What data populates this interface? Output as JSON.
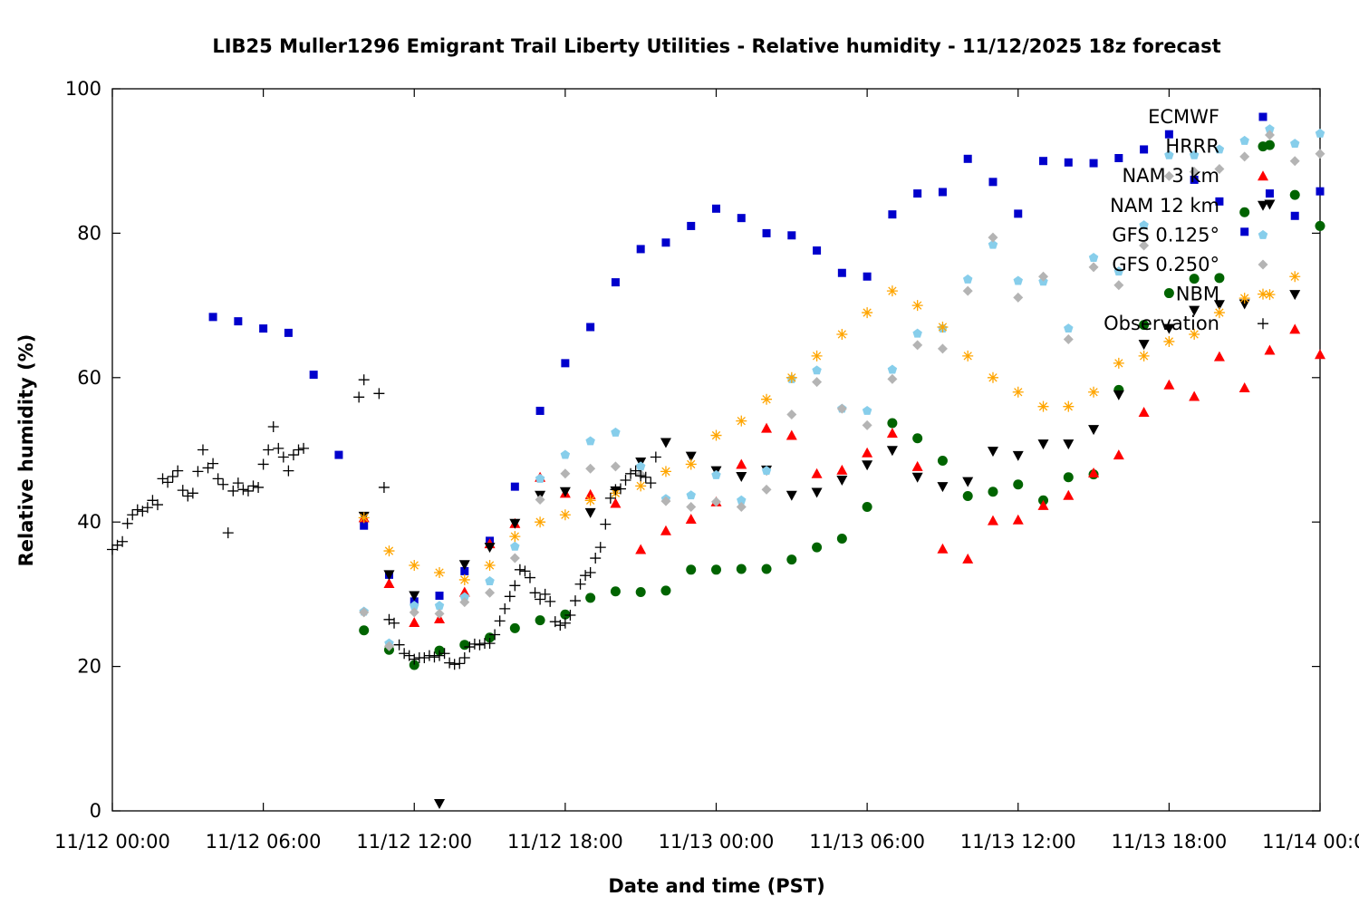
{
  "chart_data": {
    "type": "scatter",
    "title": "LIB25 Muller1296 Emigrant Trail Liberty Utilities - Relative humidity - 11/12/2025 18z forecast",
    "xlabel": "Date and time (PST)",
    "ylabel": "Relative humidity (%)",
    "xlim": [
      0,
      48
    ],
    "ylim": [
      0,
      100
    ],
    "grid": false,
    "legend_position": "top-right",
    "x_unit": "hours since 11/12 00:00 PST",
    "xticks": [
      {
        "x": 0,
        "label": "11/12 00:00"
      },
      {
        "x": 6,
        "label": "11/12 06:00"
      },
      {
        "x": 12,
        "label": "11/12 12:00"
      },
      {
        "x": 18,
        "label": "11/12 18:00"
      },
      {
        "x": 24,
        "label": "11/13 00:00"
      },
      {
        "x": 30,
        "label": "11/13 06:00"
      },
      {
        "x": 36,
        "label": "11/13 12:00"
      },
      {
        "x": 42,
        "label": "11/13 18:00"
      },
      {
        "x": 48,
        "label": "11/14 00:00"
      }
    ],
    "yticks": [
      {
        "y": 0,
        "label": "0"
      },
      {
        "y": 20,
        "label": "20"
      },
      {
        "y": 40,
        "label": "40"
      },
      {
        "y": 60,
        "label": "60"
      },
      {
        "y": 80,
        "label": "80"
      },
      {
        "y": 100,
        "label": "100"
      }
    ],
    "series": [
      {
        "name": "ECMWF",
        "marker": "square",
        "color": "#0000cc",
        "x": [
          4,
          5,
          6,
          7,
          8,
          9,
          10,
          11,
          12,
          13,
          14,
          15,
          16,
          17,
          18,
          19,
          20,
          21,
          22,
          23,
          24,
          25,
          26,
          27,
          28,
          29,
          30,
          31,
          32,
          33,
          34,
          35,
          36,
          37,
          38,
          39,
          40,
          41,
          42,
          43,
          44,
          45,
          46,
          47,
          48
        ],
        "y": [
          68.4,
          67.8,
          66.8,
          66.2,
          60.4,
          49.3,
          39.5,
          32.7,
          29,
          29.8,
          33.2,
          37.4,
          44.9,
          55.4,
          62,
          67,
          73.2,
          77.8,
          78.7,
          81,
          83.4,
          82.1,
          80,
          79.7,
          77.6,
          74.5,
          74,
          82.6,
          85.5,
          85.7,
          90.3,
          87.1,
          82.7,
          90,
          89.8,
          89.7,
          90.4,
          91.6,
          93.7,
          87.4,
          84.4,
          80.2,
          85.5,
          82.4,
          85.8
        ]
      },
      {
        "name": "HRRR",
        "marker": "circle",
        "color": "#006400",
        "x": [
          10,
          11,
          12,
          13,
          14,
          15,
          16,
          17,
          18,
          19,
          20,
          21,
          22,
          23,
          24,
          25,
          26,
          27,
          28,
          29,
          30,
          31,
          32,
          33,
          34,
          35,
          36,
          37,
          38,
          39,
          40,
          41,
          42,
          43,
          44,
          45,
          46,
          47,
          48
        ],
        "y": [
          25,
          22.3,
          20.2,
          22.2,
          23,
          24,
          25.3,
          26.4,
          27.2,
          29.5,
          30.4,
          30.3,
          30.5,
          33.4,
          33.4,
          33.5,
          33.5,
          34.8,
          36.5,
          37.7,
          42.1,
          53.7,
          51.6,
          48.5,
          43.6,
          44.2,
          45.2,
          43,
          46.2,
          46.6,
          58.3,
          67.3,
          71.7,
          73.7,
          73.8,
          82.9,
          92.2,
          85.3,
          81
        ]
      },
      {
        "name": "NAM 3 km",
        "marker": "triangle-up",
        "color": "#ff0000",
        "x": [
          10,
          11,
          12,
          13,
          14,
          15,
          16,
          17,
          18,
          19,
          20,
          21,
          22,
          23,
          24,
          25,
          26,
          27,
          28,
          29,
          30,
          31,
          32,
          33,
          34,
          35,
          36,
          37,
          38,
          39,
          40,
          41,
          42,
          43,
          44,
          45,
          46,
          47,
          48
        ],
        "y": [
          40.6,
          31.5,
          26.1,
          26.6,
          30.3,
          37,
          39.8,
          46.2,
          44,
          43.8,
          42.6,
          36.2,
          38.8,
          40.4,
          42.8,
          48,
          53,
          52,
          46.7,
          47.2,
          49.6,
          52.3,
          47.7,
          36.3,
          34.9,
          40.2,
          40.3,
          42.3,
          43.7,
          46.8,
          49.3,
          55.2,
          59,
          57.4,
          62.9,
          58.6,
          63.8,
          66.7,
          63.2
        ]
      },
      {
        "name": "NAM 12 km",
        "marker": "triangle-down",
        "color": "#000000",
        "x": [
          10,
          11,
          12,
          13,
          14,
          15,
          16,
          17,
          18,
          19,
          20,
          21,
          22,
          23,
          24,
          25,
          26,
          27,
          28,
          29,
          30,
          31,
          32,
          33,
          34,
          35,
          36,
          37,
          38,
          39,
          40,
          41,
          42,
          43,
          44,
          45,
          46,
          47
        ],
        "y": [
          40.8,
          32.7,
          29.8,
          1,
          34.1,
          36.5,
          39.8,
          43.7,
          44.2,
          41.3,
          44.3,
          48.3,
          51,
          49.1,
          47.1,
          46.3,
          47.2,
          43.7,
          44.1,
          45.8,
          47.9,
          49.9,
          46.2,
          44.9,
          45.6,
          49.8,
          49.2,
          50.8,
          50.8,
          52.8,
          57.6,
          64.6,
          66.8,
          69.3,
          70.1,
          70.2,
          84,
          71.5
        ]
      },
      {
        "name": "GFS 0.125°",
        "marker": "pentagon",
        "color": "#87ceeb",
        "x": [
          10,
          11,
          12,
          13,
          14,
          15,
          16,
          17,
          18,
          19,
          20,
          21,
          22,
          23,
          24,
          25,
          26,
          27,
          28,
          29,
          30,
          31,
          32,
          33,
          34,
          35,
          36,
          37,
          38,
          39,
          40,
          41,
          42,
          43,
          44,
          45,
          46,
          47,
          48
        ],
        "y": [
          27.6,
          23.2,
          28.4,
          28.4,
          29.6,
          31.8,
          36.6,
          46,
          49.3,
          51.2,
          52.4,
          47.7,
          43.2,
          43.7,
          46.5,
          43,
          47.1,
          59.8,
          61,
          55.7,
          55.4,
          61.1,
          66.1,
          66.8,
          73.6,
          78.4,
          73.4,
          73.3,
          66.8,
          76.6,
          74.7,
          81.1,
          90.8,
          90.8,
          91.6,
          92.8,
          94.4,
          92.4,
          93.8
        ]
      },
      {
        "name": "GFS 0.250°",
        "marker": "diamond",
        "color": "#b4b4b4",
        "x": [
          10,
          11,
          12,
          13,
          14,
          15,
          16,
          17,
          18,
          19,
          20,
          21,
          22,
          23,
          24,
          25,
          26,
          27,
          28,
          29,
          30,
          31,
          32,
          33,
          34,
          35,
          36,
          37,
          38,
          39,
          40,
          41,
          42,
          43,
          44,
          45,
          46,
          47,
          48
        ],
        "y": [
          27.5,
          22.8,
          27.5,
          27.3,
          28.9,
          30.2,
          35,
          43.1,
          46.7,
          47.4,
          47.7,
          46.6,
          42.9,
          42.1,
          42.8,
          42.1,
          44.5,
          54.9,
          59.4,
          55.7,
          53.4,
          59.8,
          64.5,
          64,
          72,
          79.4,
          71.1,
          74,
          65.3,
          75.3,
          72.8,
          78.3,
          87.9,
          88.5,
          88.9,
          90.6,
          93.6,
          90,
          91
        ]
      },
      {
        "name": "NBM",
        "marker": "asterisk",
        "color": "#ffa500",
        "x": [
          10,
          11,
          12,
          13,
          14,
          15,
          16,
          17,
          18,
          19,
          20,
          21,
          22,
          23,
          24,
          25,
          26,
          27,
          28,
          29,
          30,
          31,
          32,
          33,
          34,
          35,
          36,
          37,
          38,
          39,
          40,
          41,
          42,
          43,
          44,
          45,
          46,
          47
        ],
        "y": [
          40.6,
          36,
          34,
          33,
          32,
          34,
          38,
          40,
          41,
          43,
          44,
          45,
          47,
          48,
          52,
          54,
          57,
          60,
          63,
          66,
          69,
          72,
          70,
          67,
          63,
          60,
          58,
          56,
          56,
          58,
          62,
          63,
          65,
          66,
          69,
          71,
          71.5,
          74
        ]
      },
      {
        "name": "Observation",
        "marker": "plus",
        "color": "#000000",
        "x": [
          0,
          0.2,
          0.4,
          0.6,
          0.8,
          1,
          1.2,
          1.4,
          1.6,
          1.8,
          2,
          2.2,
          2.4,
          2.6,
          2.8,
          3,
          3.2,
          3.4,
          3.6,
          3.8,
          4,
          4.2,
          4.4,
          4.6,
          4.8,
          5,
          5.2,
          5.4,
          5.6,
          5.8,
          6,
          6.2,
          6.4,
          6.6,
          6.8,
          7,
          7.2,
          7.4,
          7.6,
          9.8,
          10,
          10.6,
          10.8,
          11,
          11.2,
          11.4,
          11.6,
          11.8,
          12,
          12.2,
          12.4,
          12.6,
          12.8,
          13,
          13.2,
          13.4,
          13.6,
          13.8,
          14,
          14.2,
          14.4,
          14.6,
          14.8,
          15,
          15.2,
          15.4,
          15.6,
          15.8,
          16,
          16.2,
          16.4,
          16.6,
          16.8,
          17,
          17.2,
          17.4,
          17.6,
          17.8,
          18,
          18.2,
          18.4,
          18.6,
          18.8,
          19,
          19.2,
          19.4,
          19.6,
          19.8,
          20,
          20.2,
          20.4,
          20.6,
          20.8,
          21,
          21.2,
          21.4,
          21.6
        ],
        "y": [
          36.2,
          36.8,
          37.3,
          39.8,
          41,
          41.7,
          41.5,
          42,
          43,
          42.4,
          46,
          45.5,
          46.3,
          47.1,
          44.4,
          43.6,
          44,
          47,
          50,
          47.5,
          48.1,
          46,
          45.2,
          38.5,
          44.3,
          45.4,
          44.5,
          44.3,
          45,
          44.8,
          48,
          50,
          53.2,
          50.2,
          49,
          47.1,
          49.3,
          50,
          50.2,
          57.3,
          59.7,
          57.8,
          44.8,
          26.5,
          26,
          23,
          21.8,
          21.5,
          21,
          21.2,
          21.2,
          21.5,
          21.3,
          21.5,
          21.8,
          20.5,
          20.3,
          20.4,
          21.2,
          22.7,
          23.1,
          23,
          23.2,
          23.2,
          24.4,
          26.3,
          28,
          29.7,
          31.2,
          33.4,
          33.2,
          32.3,
          30.2,
          29.3,
          30,
          29,
          26.2,
          25.7,
          26,
          27.1,
          29.1,
          31.4,
          32.6,
          33,
          35,
          36.5,
          39.7,
          43.3,
          44.5,
          44.6,
          45.8,
          46.7,
          47.1,
          46.4,
          46.2,
          45.4,
          49
        ]
      }
    ]
  }
}
